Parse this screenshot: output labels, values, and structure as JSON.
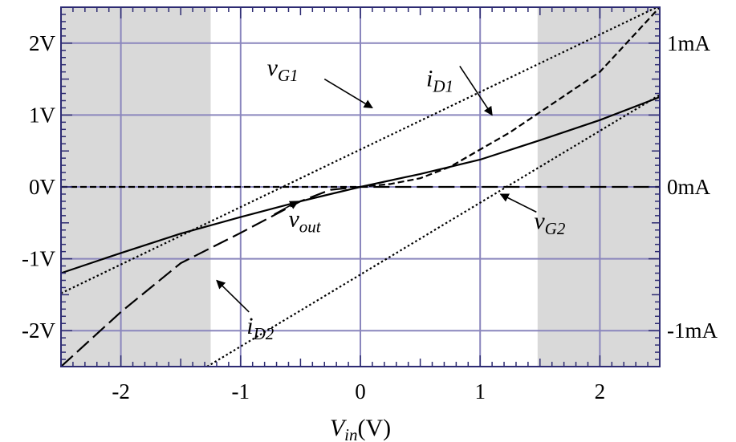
{
  "chart_data": {
    "type": "line",
    "xlabel": {
      "main": "V",
      "sub": "in",
      "unit": "(V)"
    },
    "xlim": [
      -2.5,
      2.5
    ],
    "ylim_left": [
      -2.5,
      2.5
    ],
    "ylim_right": [
      -1.25,
      1.25
    ],
    "x_ticks": [
      {
        "value": -2,
        "label": "-2"
      },
      {
        "value": -1,
        "label": "-1"
      },
      {
        "value": 0,
        "label": "0"
      },
      {
        "value": 1,
        "label": "1"
      },
      {
        "value": 2,
        "label": "2"
      }
    ],
    "y_ticks_left": [
      {
        "value": 2,
        "label": "2V"
      },
      {
        "value": 1,
        "label": "1V"
      },
      {
        "value": 0,
        "label": "0V"
      },
      {
        "value": -1,
        "label": "-1V"
      },
      {
        "value": -2,
        "label": "-2V"
      }
    ],
    "y_ticks_right": [
      {
        "value": 1,
        "label": "1mA"
      },
      {
        "value": 0,
        "label": "0mA"
      },
      {
        "value": -1,
        "label": "-1mA"
      }
    ],
    "grid": true,
    "shaded_regions": [
      {
        "x_from": -2.5,
        "x_to": -1.25,
        "color": "#d9d9d9"
      },
      {
        "x_from": 1.48,
        "x_to": 2.5,
        "color": "#d9d9d9"
      }
    ],
    "colors": {
      "grid": "#8a86bd",
      "frame": "#2d2b72",
      "curves": "#000000"
    },
    "series": [
      {
        "name": {
          "main": "v",
          "sub": "G1"
        },
        "axis": "left",
        "style": "dotted",
        "x": [
          -2.5,
          2.5
        ],
        "y": [
          -1.48,
          2.52
        ],
        "label_position": {
          "x": -0.78,
          "y": 1.55
        },
        "arrow_from": {
          "x": -0.3,
          "y": 1.5
        },
        "arrow_to": {
          "x": 0.1,
          "y": 1.1
        }
      },
      {
        "name": {
          "main": "v",
          "sub": "G2"
        },
        "axis": "left",
        "style": "dotted",
        "x": [
          -1.28,
          2.5
        ],
        "y": [
          -2.5,
          1.28
        ],
        "label_position": {
          "x": 1.45,
          "y": -0.58
        },
        "arrow_from": {
          "x": 1.47,
          "y": -0.35
        },
        "arrow_to": {
          "x": 1.17,
          "y": -0.1
        }
      },
      {
        "name": {
          "main": "v",
          "sub": "out"
        },
        "axis": "left",
        "style": "solid",
        "x": [
          -2.5,
          -2.0,
          -1.5,
          -1.0,
          -0.5,
          0.0,
          0.5,
          1.0,
          1.5,
          2.0,
          2.5
        ],
        "y": [
          -1.2,
          -0.92,
          -0.65,
          -0.42,
          -0.2,
          0.0,
          0.18,
          0.38,
          0.65,
          0.93,
          1.25
        ],
        "label_position": {
          "x": -0.6,
          "y": -0.55
        },
        "arrow_from": {
          "x": -0.72,
          "y": -0.38
        },
        "arrow_to": {
          "x": -0.52,
          "y": -0.2
        }
      },
      {
        "name": {
          "main": "i",
          "sub": "D1"
        },
        "axis": "right",
        "style": "short-dash",
        "x": [
          -2.5,
          0.0,
          0.25,
          0.5,
          0.75,
          1.0,
          1.25,
          1.5,
          2.0,
          2.5
        ],
        "y": [
          0.0,
          0.0,
          0.02,
          0.06,
          0.14,
          0.26,
          0.38,
          0.52,
          0.8,
          1.25
        ],
        "label_position": {
          "x": 0.55,
          "y": 0.7
        },
        "arrow_from": {
          "x": 0.83,
          "y": 0.84
        },
        "arrow_to": {
          "x": 1.1,
          "y": 0.5
        }
      },
      {
        "name": {
          "main": "i",
          "sub": "D2"
        },
        "axis": "right",
        "style": "long-dash",
        "x": [
          -2.5,
          -2.0,
          -1.5,
          -1.0,
          -0.5,
          -0.25,
          0.0,
          2.5
        ],
        "y": [
          -1.25,
          -0.87,
          -0.53,
          -0.32,
          -0.1,
          -0.02,
          0.0,
          0.0
        ],
        "label_position": {
          "x": -0.95,
          "y": -1.02
        },
        "arrow_from": {
          "x": -0.93,
          "y": -0.87
        },
        "arrow_to": {
          "x": -1.2,
          "y": -0.65
        }
      }
    ]
  }
}
